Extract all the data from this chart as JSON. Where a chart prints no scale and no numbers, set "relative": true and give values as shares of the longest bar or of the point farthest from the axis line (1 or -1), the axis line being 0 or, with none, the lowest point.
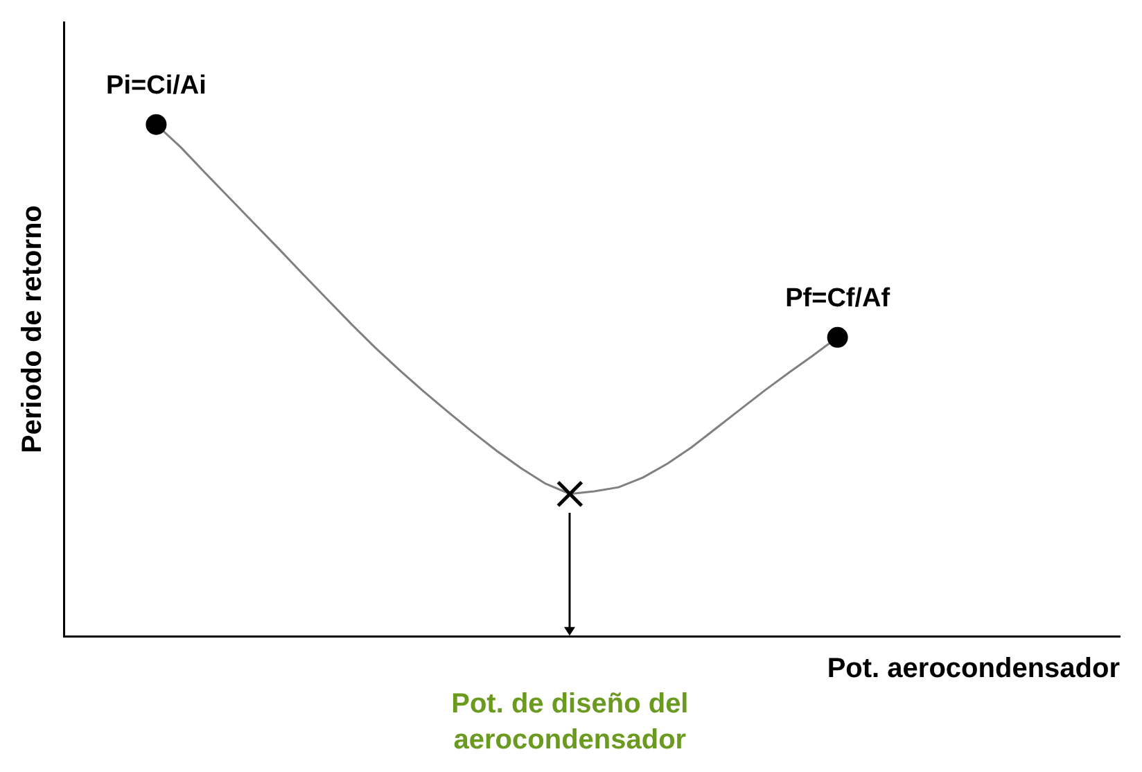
{
  "chart_data": {
    "type": "line",
    "relative": true,
    "xlabel": "Pot. aerocondensador",
    "ylabel": "Periodo de retorno",
    "categories": [
      null,
      null,
      null,
      null,
      null,
      null,
      null,
      null,
      null,
      null,
      null,
      null,
      null,
      null,
      null,
      null,
      null,
      null,
      null,
      null,
      null,
      null,
      null,
      null,
      null,
      null,
      null,
      null,
      null
    ],
    "series": [
      {
        "color": "#808080",
        "values": [
          1.0,
          0.956,
          0.906,
          0.857,
          0.808,
          0.759,
          0.709,
          0.66,
          0.611,
          0.564,
          0.52,
          0.478,
          0.438,
          0.399,
          0.362,
          0.328,
          0.298,
          0.278,
          0.283,
          0.291,
          0.31,
          0.337,
          0.369,
          0.406,
          0.443,
          0.48,
          0.515,
          0.549,
          0.584
        ]
      }
    ],
    "line_style": "solid",
    "annotations": [
      "Pi=Ci/Ai",
      "Pf=Cf/Af",
      "Pot. de diseño del aerocondensador"
    ],
    "grid": false,
    "legend": false
  }
}
